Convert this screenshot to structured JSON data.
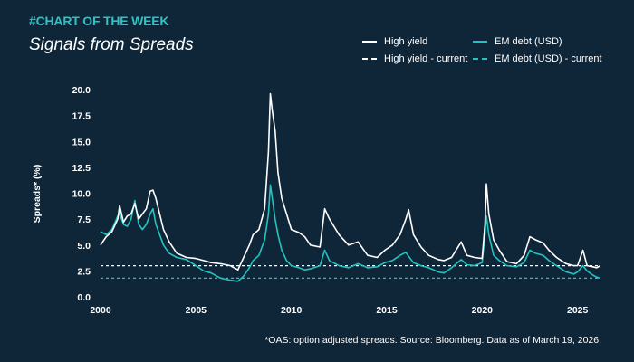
{
  "header": {
    "kicker": "#CHART OF THE WEEK",
    "title": "Signals from Spreads"
  },
  "footnote": "*OAS: option adjusted spreads. Source: Bloomberg. Data as of March 19, 2026.",
  "colors": {
    "background": "#0f2538",
    "high_yield": "#ffffff",
    "em_debt": "#22c4c0",
    "kicker": "#2ec4c4"
  },
  "chart_data": {
    "type": "line",
    "ylabel": "Spreads* (%)",
    "xlim": [
      2000,
      2026.25
    ],
    "ylim": [
      0,
      20
    ],
    "x_ticks": [
      2000,
      2005,
      2010,
      2015,
      2020,
      2025
    ],
    "y_ticks": [
      "0.0",
      "2.5",
      "5.0",
      "7.5",
      "10.0",
      "12.5",
      "15.0",
      "17.5",
      "20.0"
    ],
    "grid": false,
    "legend_position": "top-right",
    "series": [
      {
        "name": "High yield",
        "style": "solid",
        "color": "#ffffff",
        "x": [
          2000.0,
          2000.3,
          2000.6,
          2000.9,
          2001.0,
          2001.2,
          2001.4,
          2001.6,
          2001.8,
          2002.0,
          2002.2,
          2002.4,
          2002.6,
          2002.75,
          2002.9,
          2003.1,
          2003.3,
          2003.6,
          2004.0,
          2004.5,
          2005.0,
          2005.4,
          2005.8,
          2006.3,
          2006.8,
          2007.2,
          2007.5,
          2007.8,
          2008.0,
          2008.3,
          2008.6,
          2008.8,
          2008.9,
          2009.0,
          2009.15,
          2009.3,
          2009.5,
          2009.75,
          2010.0,
          2010.4,
          2010.7,
          2011.0,
          2011.5,
          2011.75,
          2012.0,
          2012.5,
          2013.0,
          2013.5,
          2014.0,
          2014.5,
          2014.9,
          2015.3,
          2015.7,
          2016.0,
          2016.15,
          2016.4,
          2016.8,
          2017.2,
          2017.7,
          2018.0,
          2018.4,
          2018.9,
          2019.2,
          2019.6,
          2020.0,
          2020.15,
          2020.22,
          2020.35,
          2020.6,
          2020.9,
          2021.3,
          2021.8,
          2022.2,
          2022.5,
          2022.8,
          2023.2,
          2023.5,
          2023.9,
          2024.4,
          2024.8,
          2025.0,
          2025.28,
          2025.5,
          2025.8,
          2026.0,
          2026.2
        ],
        "values": [
          5.0,
          5.8,
          6.3,
          7.5,
          8.8,
          7.2,
          7.8,
          8.0,
          9.0,
          7.5,
          8.0,
          8.5,
          10.2,
          10.3,
          9.5,
          8.0,
          6.5,
          5.3,
          4.2,
          3.8,
          3.7,
          3.5,
          3.3,
          3.2,
          3.0,
          2.6,
          3.8,
          5.0,
          6.0,
          6.5,
          8.5,
          14.0,
          19.6,
          18.0,
          16.0,
          12.0,
          9.5,
          8.0,
          6.5,
          6.2,
          5.8,
          5.0,
          4.8,
          8.5,
          7.5,
          6.0,
          5.0,
          5.3,
          4.0,
          3.8,
          4.5,
          5.0,
          6.0,
          7.5,
          8.4,
          6.0,
          4.8,
          4.0,
          3.6,
          3.5,
          3.8,
          5.3,
          4.0,
          3.8,
          3.7,
          7.0,
          10.9,
          8.0,
          5.5,
          4.5,
          3.4,
          3.2,
          4.0,
          5.8,
          5.5,
          5.2,
          4.5,
          3.8,
          3.2,
          3.0,
          3.0,
          4.5,
          3.0,
          2.9,
          2.8,
          3.0
        ]
      },
      {
        "name": "EM debt (USD)",
        "style": "solid",
        "color": "#22c4c0",
        "x": [
          2000.0,
          2000.3,
          2000.6,
          2000.9,
          2001.0,
          2001.2,
          2001.4,
          2001.6,
          2001.8,
          2002.0,
          2002.2,
          2002.4,
          2002.6,
          2002.75,
          2002.9,
          2003.1,
          2003.3,
          2003.6,
          2004.0,
          2004.5,
          2005.0,
          2005.4,
          2005.8,
          2006.3,
          2006.8,
          2007.2,
          2007.5,
          2007.8,
          2008.0,
          2008.3,
          2008.6,
          2008.8,
          2008.9,
          2009.0,
          2009.15,
          2009.3,
          2009.5,
          2009.75,
          2010.0,
          2010.4,
          2010.7,
          2011.0,
          2011.5,
          2011.75,
          2012.0,
          2012.5,
          2013.0,
          2013.5,
          2014.0,
          2014.5,
          2014.9,
          2015.3,
          2015.7,
          2016.0,
          2016.15,
          2016.4,
          2016.8,
          2017.2,
          2017.7,
          2018.0,
          2018.4,
          2018.9,
          2019.2,
          2019.6,
          2020.0,
          2020.15,
          2020.22,
          2020.35,
          2020.6,
          2020.9,
          2021.3,
          2021.8,
          2022.2,
          2022.5,
          2022.8,
          2023.2,
          2023.5,
          2023.9,
          2024.4,
          2024.8,
          2025.0,
          2025.28,
          2025.5,
          2025.8,
          2026.0,
          2026.2
        ],
        "values": [
          6.3,
          6.0,
          6.5,
          7.8,
          8.0,
          7.0,
          6.8,
          7.5,
          9.3,
          7.0,
          6.5,
          7.0,
          8.0,
          8.5,
          7.0,
          6.0,
          5.0,
          4.2,
          3.8,
          3.6,
          3.0,
          2.5,
          2.3,
          1.8,
          1.6,
          1.5,
          2.0,
          2.8,
          3.5,
          4.0,
          5.5,
          8.0,
          10.8,
          9.5,
          7.5,
          6.0,
          4.5,
          3.5,
          3.0,
          2.8,
          2.6,
          2.7,
          3.0,
          4.5,
          3.5,
          3.0,
          2.8,
          3.2,
          2.8,
          2.9,
          3.3,
          3.5,
          4.0,
          4.3,
          3.9,
          3.3,
          3.0,
          2.8,
          2.4,
          2.3,
          2.8,
          3.6,
          3.1,
          3.0,
          3.3,
          6.0,
          7.8,
          6.0,
          4.0,
          3.5,
          3.0,
          2.9,
          3.3,
          4.5,
          4.2,
          4.0,
          3.5,
          3.0,
          2.4,
          2.2,
          2.4,
          3.0,
          2.5,
          2.1,
          1.9,
          1.8
        ]
      },
      {
        "name": "High yield - current",
        "style": "dashed",
        "color": "#ffffff",
        "x": [
          2000,
          2026.2
        ],
        "values": [
          3.0,
          3.0
        ]
      },
      {
        "name": "EM debt (USD) - current",
        "style": "dashed",
        "color": "#22c4c0",
        "x": [
          2000,
          2026.2
        ],
        "values": [
          1.8,
          1.8
        ]
      }
    ]
  }
}
